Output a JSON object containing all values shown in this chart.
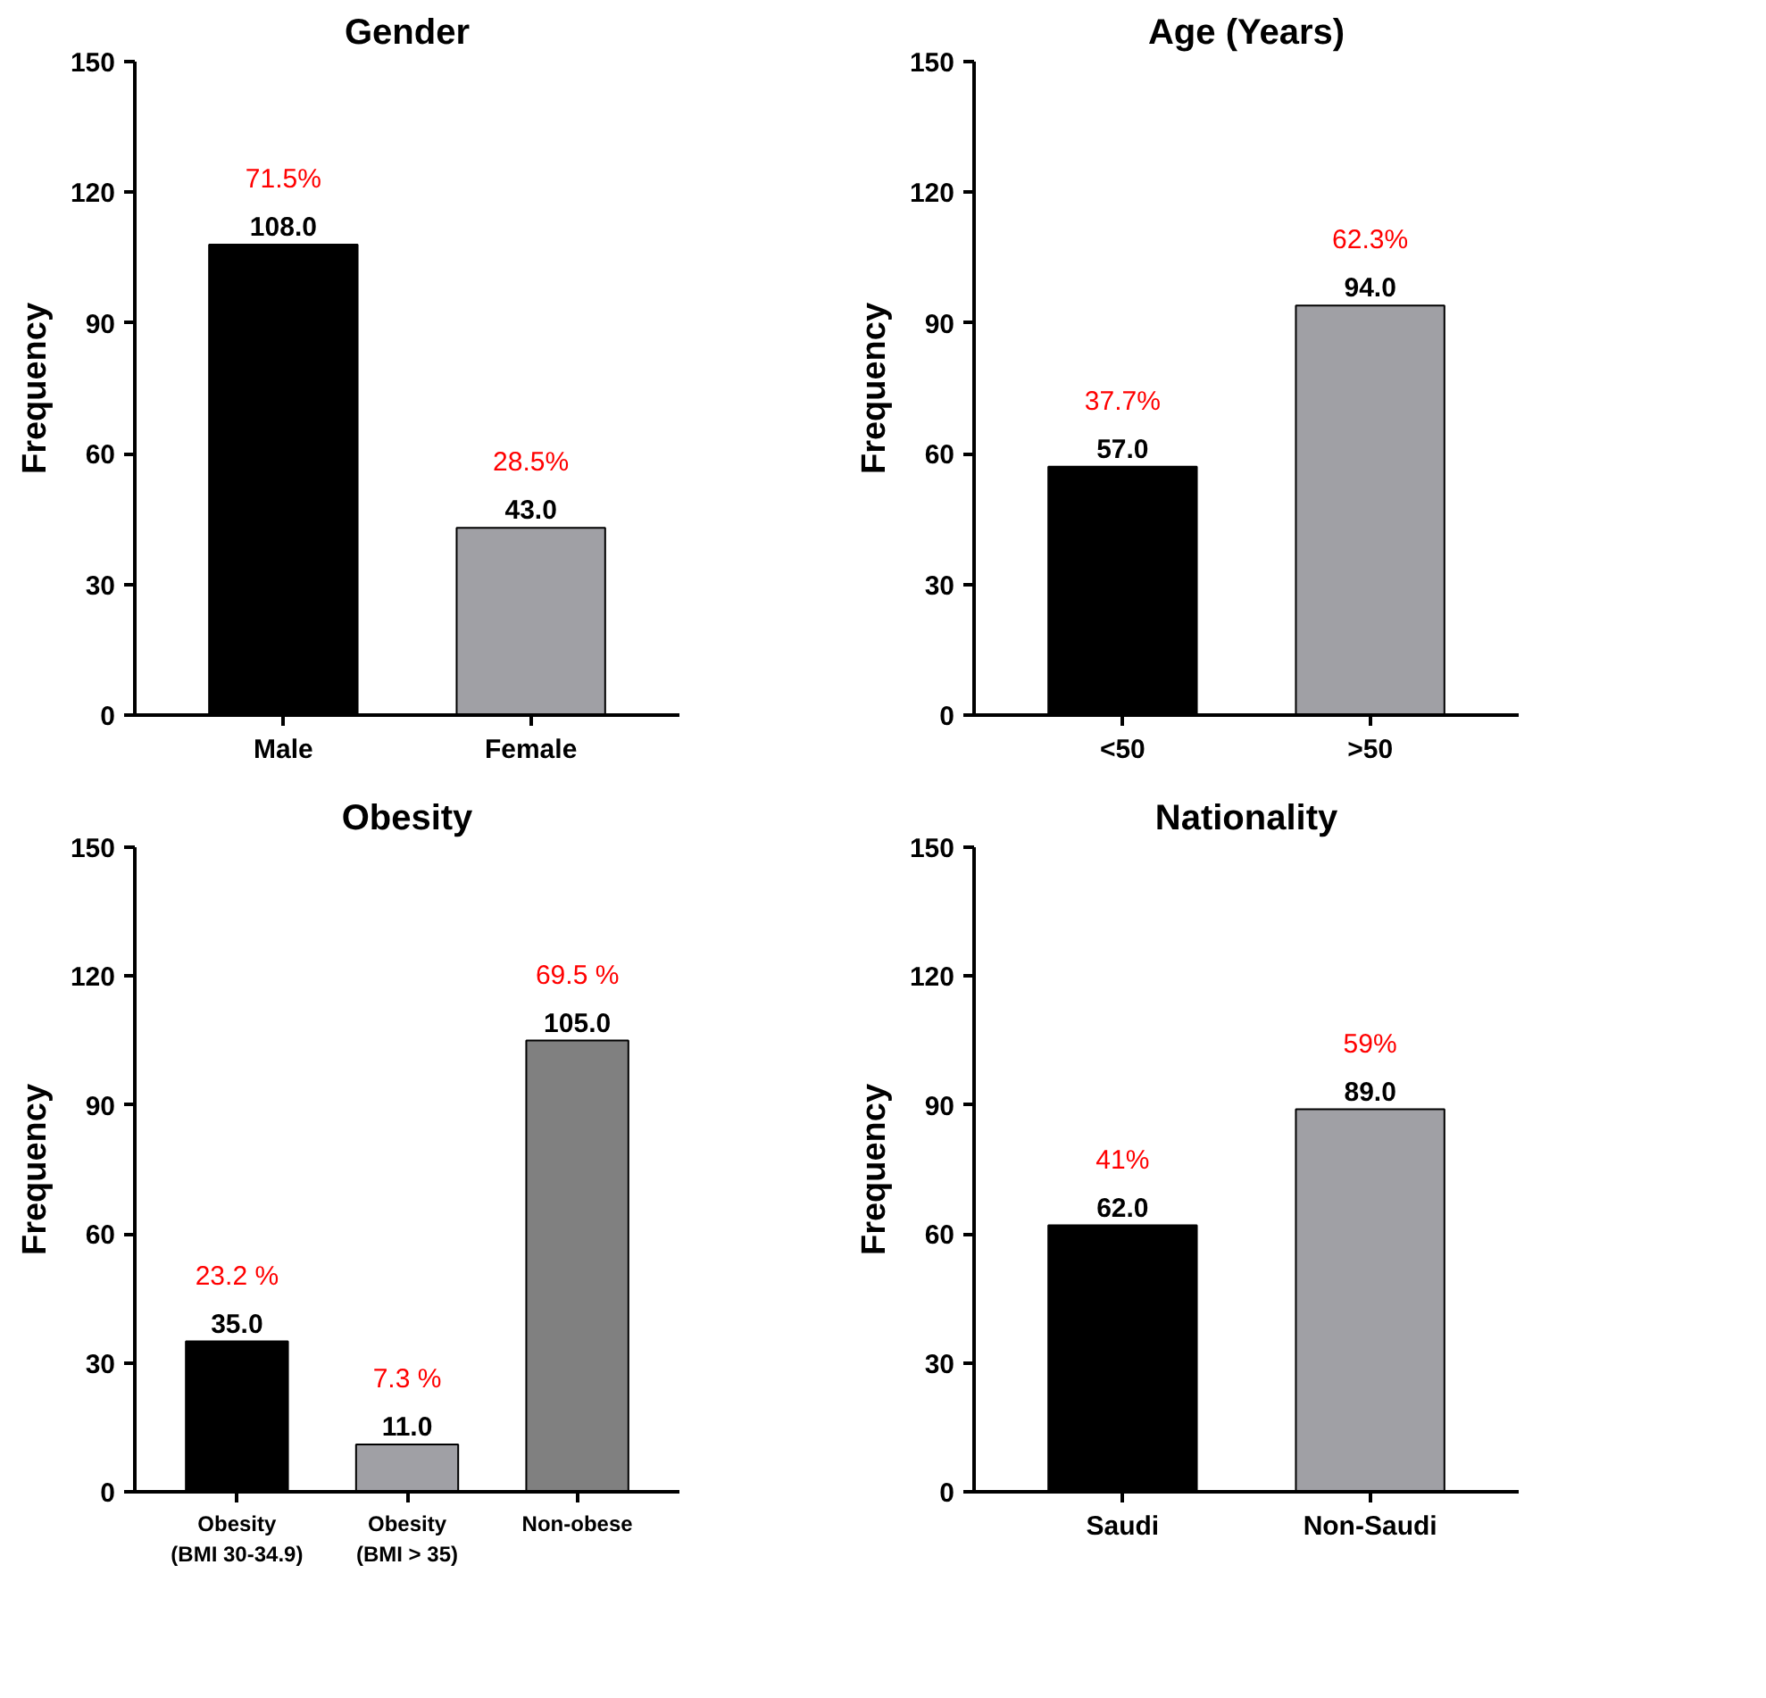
{
  "chart_data": [
    {
      "type": "bar",
      "title": "Gender",
      "ylabel": "Frequency",
      "categories": [
        "Male",
        "Female"
      ],
      "values": [
        108,
        43
      ],
      "colors": [
        "#000000",
        "#a0a0a5"
      ],
      "ylim": [
        0,
        150
      ],
      "yticks": [
        0,
        30,
        60,
        90,
        120,
        150
      ],
      "value_labels": [
        "108.0",
        "43.0"
      ],
      "annotations": [
        {
          "text": "71.5%",
          "x": "Male",
          "y": 108
        },
        {
          "text": "28.5%",
          "x": "Female",
          "y": 43
        }
      ]
    },
    {
      "type": "bar",
      "title": "Age (Years)",
      "ylabel": "Frequency",
      "categories": [
        "<50",
        ">50"
      ],
      "values": [
        57,
        94
      ],
      "colors": [
        "#000000",
        "#a0a0a5"
      ],
      "ylim": [
        0,
        150
      ],
      "yticks": [
        0,
        30,
        60,
        90,
        120,
        150
      ],
      "value_labels": [
        "57.0",
        "94.0"
      ],
      "annotations": [
        {
          "text": "37.7%",
          "x": "<50",
          "y": 57
        },
        {
          "text": "62.3%",
          "x": ">50",
          "y": 94
        }
      ]
    },
    {
      "type": "bar",
      "title": "Obesity",
      "ylabel": "Frequency",
      "categories": [
        "Obesity\n(BMI 30-34.9)",
        "Obesity\n(BMI > 35)",
        "Non-obese"
      ],
      "values": [
        35,
        11,
        105
      ],
      "colors": [
        "#000000",
        "#a0a0a5",
        "#808080"
      ],
      "ylim": [
        0,
        150
      ],
      "yticks": [
        0,
        30,
        60,
        90,
        120,
        150
      ],
      "value_labels": [
        "35.0",
        "11.0",
        "105.0"
      ],
      "annotations": [
        {
          "text": "23.2 %",
          "x": "Obesity\n(BMI 30-34.9)",
          "y": 35
        },
        {
          "text": "7.3 %",
          "x": "Obesity\n(BMI > 35)",
          "y": 11
        },
        {
          "text": "69.5 %",
          "x": "Non-obese",
          "y": 105
        }
      ]
    },
    {
      "type": "bar",
      "title": "Nationality",
      "ylabel": "Frequency",
      "categories": [
        "Saudi",
        "Non-Saudi"
      ],
      "values": [
        62,
        89
      ],
      "colors": [
        "#000000",
        "#a0a0a5"
      ],
      "ylim": [
        0,
        150
      ],
      "yticks": [
        0,
        30,
        60,
        90,
        120,
        150
      ],
      "value_labels": [
        "62.0",
        "89.0"
      ],
      "annotations": [
        {
          "text": "41%",
          "x": "Saudi",
          "y": 62
        },
        {
          "text": "59%",
          "x": "Non-Saudi",
          "y": 89
        }
      ]
    }
  ]
}
